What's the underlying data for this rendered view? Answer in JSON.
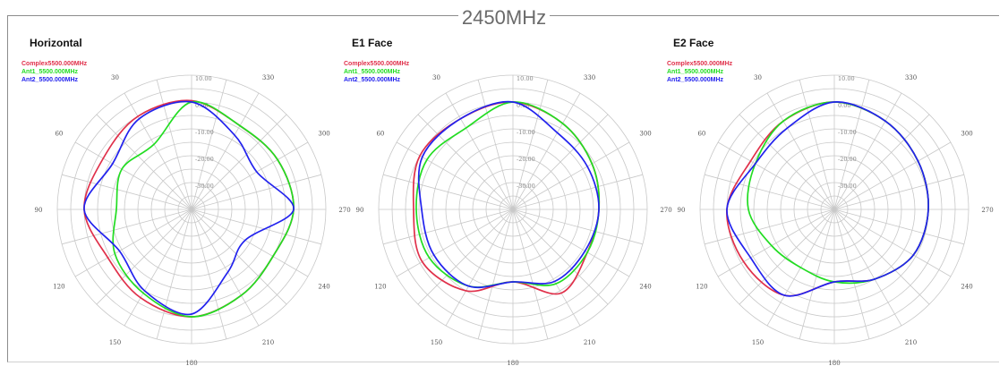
{
  "page_title": "2450MHz",
  "chart_data": [
    {
      "type": "polar-line",
      "title": "Horizontal",
      "angular_ticks": [
        "0.00",
        "30",
        "60",
        "90",
        "120",
        "150",
        "180",
        "210",
        "240",
        "270",
        "300",
        "330"
      ],
      "radial_ticks": [
        "10.00",
        "0.00",
        "-10.00",
        "-20.00",
        "-30.00"
      ],
      "rlim": [
        -40,
        10
      ],
      "angle_direction": "counterclockwise, 0 at top, 90 at left",
      "angles_deg": [
        0,
        30,
        60,
        90,
        120,
        150,
        180,
        210,
        240,
        270,
        300,
        330
      ],
      "series": [
        {
          "name": "Complex5500.000MHz",
          "color": "#e0304a",
          "values": [
            0.5,
            0.0,
            -2.0,
            0.0,
            -4.0,
            -2.0,
            0.0,
            -3.0,
            -5.0,
            -2.0,
            -3.0,
            -4.0
          ]
        },
        {
          "name": "Ant1_5500.000MHz",
          "color": "#22dd22",
          "values": [
            0.0,
            -12.0,
            -10.0,
            -12.0,
            -7.0,
            -4.0,
            0.0,
            -3.0,
            -5.0,
            -2.0,
            -3.0,
            -4.0
          ]
        },
        {
          "name": "Ant2_5500.000MHz",
          "color": "#2222ee",
          "values": [
            0.0,
            -1.0,
            -6.0,
            0.0,
            -9.0,
            -5.0,
            -1.0,
            -13.0,
            -17.0,
            -2.0,
            -12.0,
            -8.0
          ]
        }
      ]
    },
    {
      "type": "polar-line",
      "title": "E1 Face",
      "angular_ticks": [
        "0.00",
        "30",
        "60",
        "90",
        "120",
        "150",
        "180",
        "210",
        "240",
        "270",
        "300",
        "330"
      ],
      "radial_ticks": [
        "10.00",
        "0.00",
        "-10.00",
        "-20.00",
        "-30.00"
      ],
      "rlim": [
        -40,
        10
      ],
      "angle_direction": "counterclockwise, 0 at top, 90 at left",
      "angles_deg": [
        0,
        30,
        60,
        90,
        120,
        150,
        180,
        210,
        240,
        270,
        300,
        330
      ],
      "series": [
        {
          "name": "Complex5500.000MHz",
          "color": "#e0304a",
          "values": [
            0.0,
            -1.0,
            0.0,
            -3.0,
            -1.0,
            -5.0,
            -13.0,
            -4.0,
            -8.0,
            -8.0,
            -6.0,
            -3.0
          ]
        },
        {
          "name": "Ant1_5500.000MHz",
          "color": "#22dd22",
          "values": [
            0.0,
            -5.0,
            -3.0,
            -4.0,
            -4.0,
            -7.0,
            -13.0,
            -8.0,
            -8.0,
            -8.0,
            -6.0,
            -3.0
          ]
        },
        {
          "name": "Ant2_5500.000MHz",
          "color": "#2222ee",
          "values": [
            0.0,
            -1.0,
            -1.0,
            -6.0,
            -6.0,
            -7.0,
            -13.0,
            -9.0,
            -9.0,
            -8.0,
            -8.0,
            -7.0
          ]
        }
      ]
    },
    {
      "type": "polar-line",
      "title": "E2 Face",
      "angular_ticks": [
        "0.00",
        "30",
        "60",
        "90",
        "120",
        "150",
        "180",
        "210",
        "240",
        "270",
        "300",
        "330"
      ],
      "radial_ticks": [
        "10.00",
        "0.00",
        "-10.00",
        "-20.00",
        "-30.00"
      ],
      "rlim": [
        -40,
        10
      ],
      "angle_direction": "counterclockwise, 0 at top, 90 at left",
      "angles_deg": [
        0,
        30,
        60,
        90,
        120,
        150,
        180,
        210,
        240,
        270,
        300,
        330
      ],
      "series": [
        {
          "name": "Complex5500.000MHz",
          "color": "#e0304a",
          "values": [
            0.0,
            -2.0,
            -4.0,
            0.0,
            -1.0,
            -3.0,
            -13.0,
            -10.0,
            -6.0,
            -5.0,
            -4.0,
            -2.0
          ]
        },
        {
          "name": "Ant1_5500.000MHz",
          "color": "#22dd22",
          "values": [
            0.0,
            -2.0,
            -6.0,
            -8.0,
            -13.0,
            -15.0,
            -13.0,
            -10.0,
            -6.0,
            -5.0,
            -4.0,
            -2.0
          ]
        },
        {
          "name": "Ant2_5500.000MHz",
          "color": "#2222ee",
          "values": [
            0.0,
            -5.0,
            -6.0,
            0.0,
            -4.0,
            -3.0,
            -13.0,
            -10.0,
            -6.0,
            -5.0,
            -4.0,
            -2.0
          ]
        }
      ]
    }
  ]
}
